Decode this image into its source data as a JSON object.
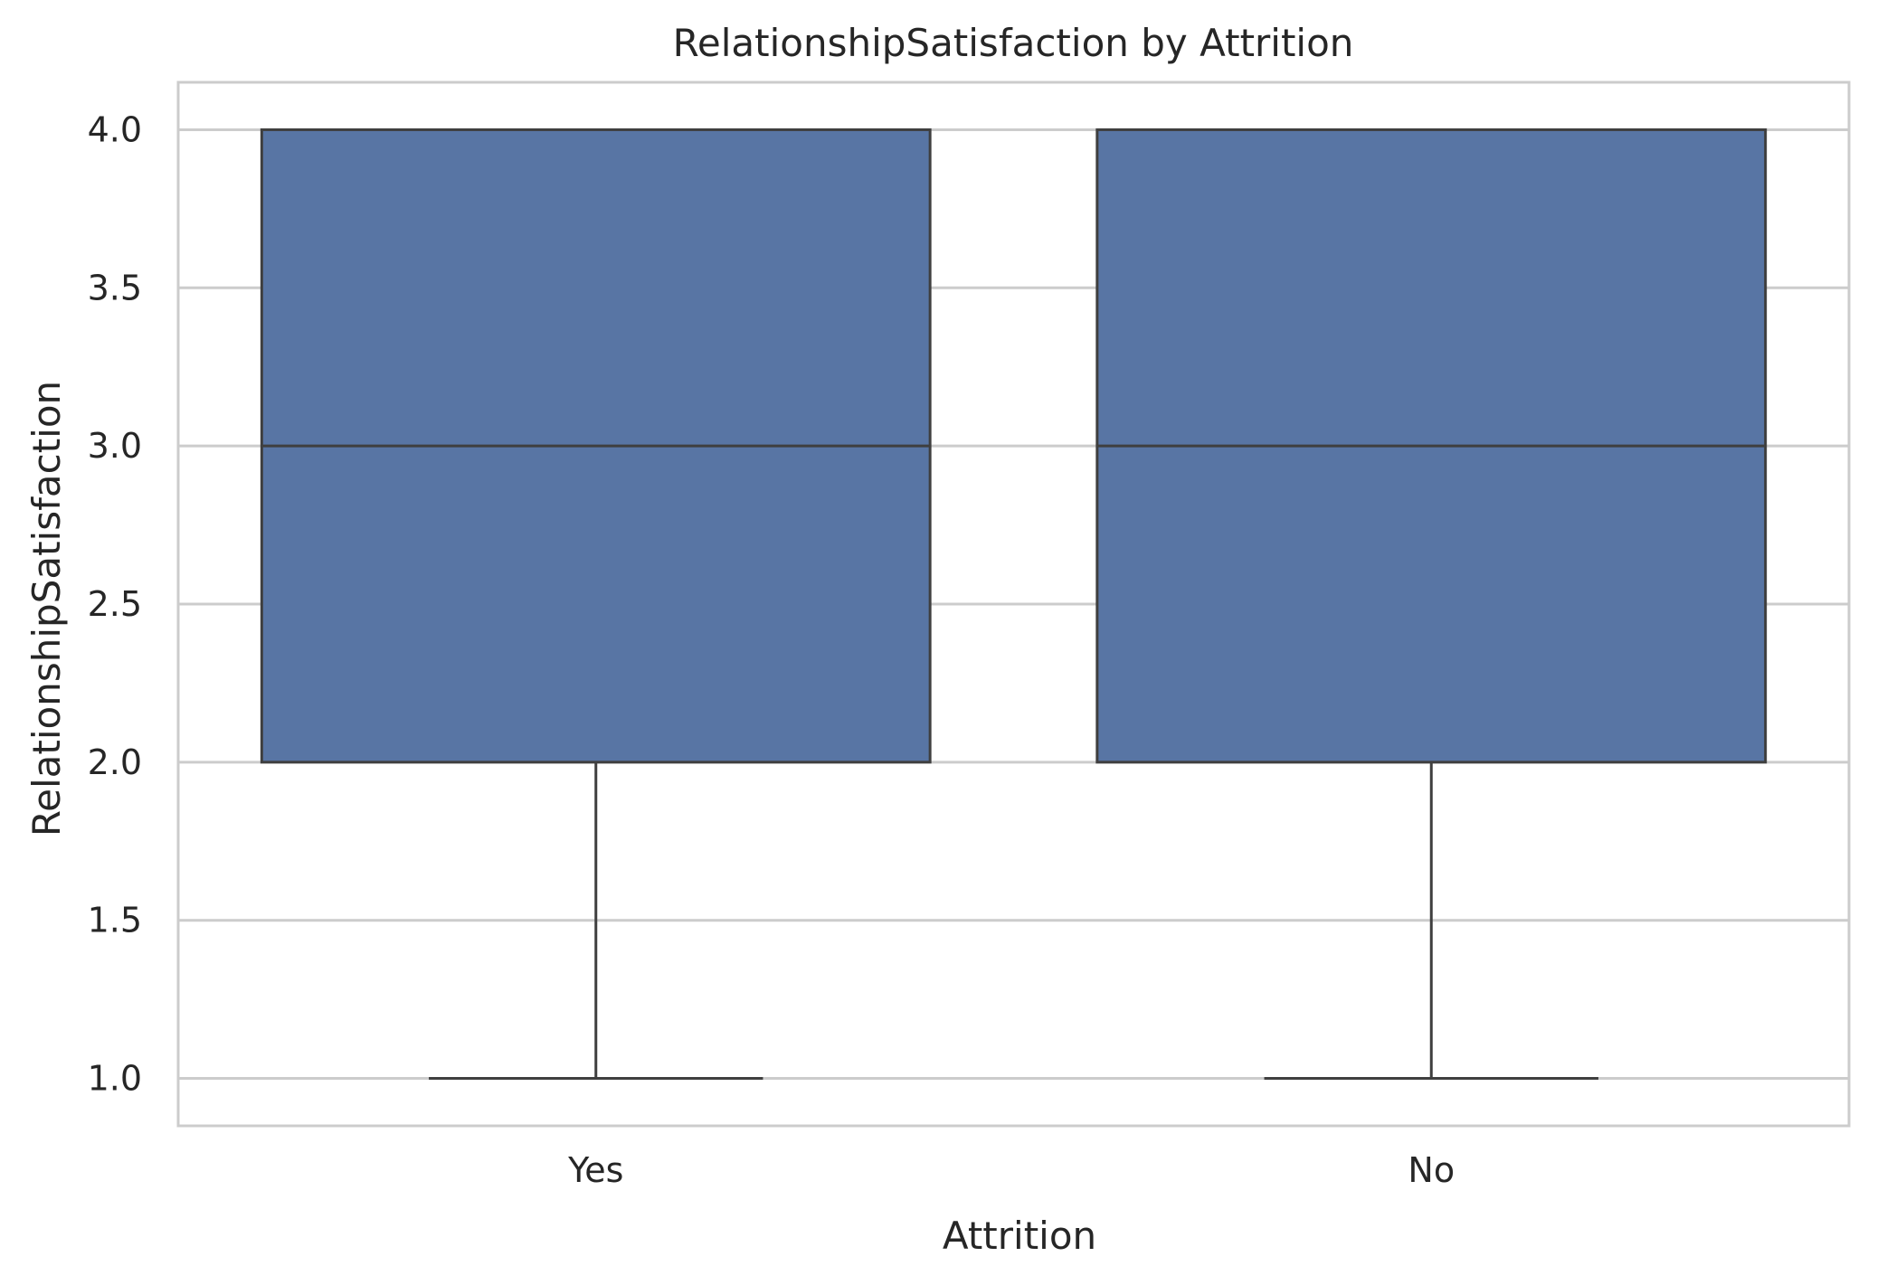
{
  "chart_data": {
    "type": "box",
    "title": "RelationshipSatisfaction by Attrition",
    "xlabel": "Attrition",
    "ylabel": "RelationshipSatisfaction",
    "categories": [
      "Yes",
      "No"
    ],
    "boxes": [
      {
        "category": "Yes",
        "whisker_low": 1.0,
        "q1": 2.0,
        "median": 3.0,
        "q3": 4.0,
        "whisker_high": 4.0
      },
      {
        "category": "No",
        "whisker_low": 1.0,
        "q1": 2.0,
        "median": 3.0,
        "q3": 4.0,
        "whisker_high": 4.0
      }
    ],
    "yticks": [
      "1.0",
      "1.5",
      "2.0",
      "2.5",
      "3.0",
      "3.5",
      "4.0"
    ],
    "ylim": [
      0.85,
      4.15
    ],
    "grid": "horizontal",
    "colors": {
      "box_fill": "#5875a4",
      "box_edge": "#3f3f3f",
      "grid": "#cccccc",
      "frame": "#cccccc"
    }
  }
}
